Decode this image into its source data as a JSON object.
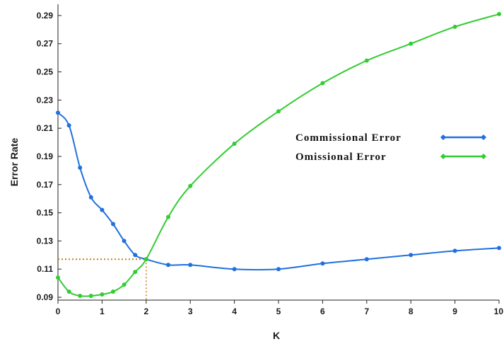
{
  "chart_data": {
    "type": "line",
    "xlabel": "K",
    "ylabel": "Error Rate",
    "xlim": [
      0,
      10
    ],
    "ylim": [
      0.088,
      0.298
    ],
    "xticks": [
      "0",
      "1",
      "2",
      "3",
      "4",
      "5",
      "6",
      "7",
      "8",
      "9",
      "10"
    ],
    "yticks": [
      "0.09",
      "0.11",
      "0.13",
      "0.15",
      "0.17",
      "0.19",
      "0.21",
      "0.23",
      "0.25",
      "0.27",
      "0.29"
    ],
    "ytick_values": [
      0.09,
      0.11,
      0.13,
      0.15,
      0.17,
      0.19,
      0.21,
      0.23,
      0.25,
      0.27,
      0.29
    ],
    "grid": false,
    "legend_position": "right",
    "series": [
      {
        "name": "Commissional Error",
        "color": "#2070e0",
        "x": [
          0,
          0.25,
          0.5,
          0.75,
          1,
          1.25,
          1.5,
          1.75,
          2,
          2.5,
          3,
          4,
          5,
          6,
          7,
          8,
          9,
          10
        ],
        "y": [
          0.221,
          0.212,
          0.182,
          0.161,
          0.152,
          0.142,
          0.13,
          0.12,
          0.117,
          0.113,
          0.113,
          0.11,
          0.11,
          0.114,
          0.117,
          0.12,
          0.123,
          0.125
        ]
      },
      {
        "name": "Omissional Error",
        "color": "#33cc33",
        "x": [
          0,
          0.25,
          0.5,
          0.75,
          1,
          1.25,
          1.5,
          1.75,
          2,
          2.5,
          3,
          4,
          5,
          6,
          7,
          8,
          9,
          10
        ],
        "y": [
          0.104,
          0.094,
          0.091,
          0.091,
          0.092,
          0.094,
          0.099,
          0.108,
          0.117,
          0.147,
          0.169,
          0.199,
          0.222,
          0.242,
          0.258,
          0.27,
          0.282,
          0.291
        ]
      }
    ],
    "annotations": [
      {
        "type": "dotted-reference-lines",
        "x": 2,
        "y": 0.117,
        "color": "#cc7a1a"
      }
    ]
  }
}
